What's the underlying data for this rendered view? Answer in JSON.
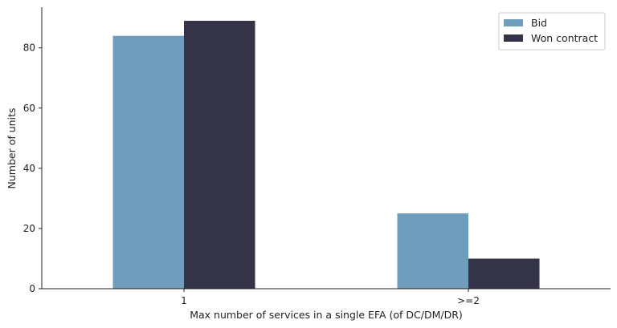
{
  "chart_data": {
    "type": "bar",
    "title": "",
    "xlabel": "Max number of services in a single EFA (of DC/DM/DR)",
    "ylabel": "Number of units",
    "categories": [
      "1",
      ">=2"
    ],
    "series": [
      {
        "name": "Bid",
        "values": [
          84,
          25
        ],
        "color": "#6f9dbb"
      },
      {
        "name": "Won contract",
        "values": [
          89,
          10
        ],
        "color": "#353347"
      }
    ],
    "ylim": [
      0,
      93.5
    ],
    "yticks": [
      0,
      20,
      40,
      60,
      80
    ],
    "grid": false,
    "legend_position": "top-right"
  }
}
